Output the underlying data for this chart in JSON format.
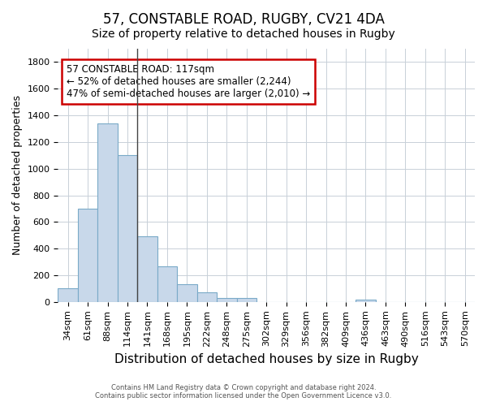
{
  "title": "57, CONSTABLE ROAD, RUGBY, CV21 4DA",
  "subtitle": "Size of property relative to detached houses in Rugby",
  "xlabel": "Distribution of detached houses by size in Rugby",
  "ylabel": "Number of detached properties",
  "categories": [
    "34sqm",
    "61sqm",
    "88sqm",
    "114sqm",
    "141sqm",
    "168sqm",
    "195sqm",
    "222sqm",
    "248sqm",
    "275sqm",
    "302sqm",
    "329sqm",
    "356sqm",
    "382sqm",
    "409sqm",
    "436sqm",
    "463sqm",
    "490sqm",
    "516sqm",
    "543sqm",
    "570sqm"
  ],
  "values": [
    100,
    700,
    1340,
    1100,
    490,
    270,
    135,
    70,
    30,
    30,
    0,
    0,
    0,
    0,
    0,
    20,
    0,
    0,
    0,
    0,
    0
  ],
  "bar_color": "#c8d8ea",
  "bar_edge_color": "#7aaac8",
  "vline_x": 3.5,
  "vline_color": "#444444",
  "annotation_title": "57 CONSTABLE ROAD: 117sqm",
  "annotation_line1": "← 52% of detached houses are smaller (2,244)",
  "annotation_line2": "47% of semi-detached houses are larger (2,010) →",
  "annotation_box_facecolor": "#ffffff",
  "annotation_box_edgecolor": "#cc0000",
  "ylim": [
    0,
    1900
  ],
  "yticks": [
    0,
    200,
    400,
    600,
    800,
    1000,
    1200,
    1400,
    1600,
    1800
  ],
  "footer_line1": "Contains HM Land Registry data © Crown copyright and database right 2024.",
  "footer_line2": "Contains public sector information licensed under the Open Government Licence v3.0.",
  "bg_color": "#ffffff",
  "plot_bg_color": "#ffffff",
  "grid_color": "#c8d0d8",
  "title_fontsize": 12,
  "subtitle_fontsize": 10,
  "ylabel_fontsize": 9,
  "xlabel_fontsize": 11,
  "tick_fontsize": 8,
  "footer_fontsize": 6,
  "ann_fontsize": 8.5
}
